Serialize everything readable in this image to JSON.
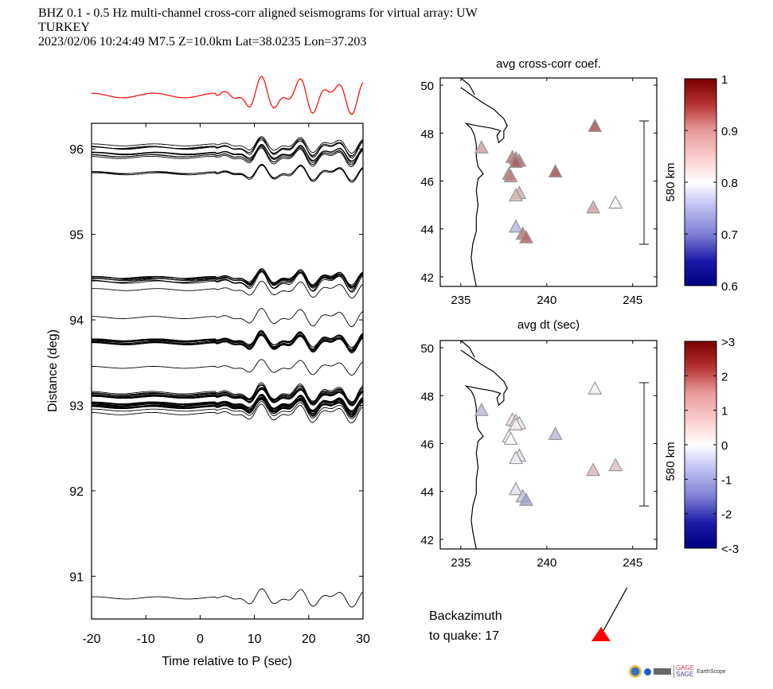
{
  "header": {
    "line1": "BHZ  0.1 - 0.5 Hz  multi-channel cross-corr aligned seismograms for virtual array: UW",
    "line2": "TURKEY",
    "line3": "2023/02/06  10:24:49  M7.5  Z=10.0km Lat=38.0235 Lon=37.203"
  },
  "chart_data": [
    {
      "type": "line",
      "name": "record-section",
      "title": "",
      "xlabel": "Time relative to P (sec)",
      "ylabel": "Distance (deg)",
      "xlim": [
        -20,
        30
      ],
      "ylim": [
        90.5,
        96.3
      ],
      "xticks": [
        "-20",
        "-10",
        "0",
        "10",
        "20",
        "30"
      ],
      "xtick_values": [
        -20,
        -10,
        0,
        10,
        20,
        30
      ],
      "yticks": [
        "91",
        "92",
        "93",
        "94",
        "95",
        "96"
      ],
      "ytick_values": [
        91,
        92,
        93,
        94,
        95,
        96
      ],
      "stack_trace_color": "#ff0000",
      "trace_color": "#000000",
      "trace_groups": [
        {
          "distance": 96.02,
          "count": 4
        },
        {
          "distance": 95.93,
          "count": 6
        },
        {
          "distance": 95.72,
          "count": 3
        },
        {
          "distance": 94.47,
          "count": 10
        },
        {
          "distance": 94.36,
          "count": 1
        },
        {
          "distance": 94.0,
          "count": 1
        },
        {
          "distance": 93.74,
          "count": 12
        },
        {
          "distance": 93.43,
          "count": 1
        },
        {
          "distance": 93.12,
          "count": 10
        },
        {
          "distance": 93.0,
          "count": 16
        },
        {
          "distance": 92.93,
          "count": 2
        },
        {
          "distance": 90.74,
          "count": 1
        }
      ]
    },
    {
      "type": "scatter",
      "name": "map-avg-cross-corr",
      "title": "avg cross-corr coef.",
      "xlabel": "avg dt (sec)",
      "xlim": [
        233.8,
        246.4
      ],
      "ylim": [
        41.6,
        50.3
      ],
      "xticks": [
        "235",
        "240",
        "245"
      ],
      "xtick_values": [
        235,
        240,
        245
      ],
      "yticks": [
        "42",
        "44",
        "46",
        "48",
        "50"
      ],
      "ytick_values": [
        42,
        44,
        46,
        48,
        50
      ],
      "scale_bar_label": "580 km",
      "colorbar": {
        "min": 0.6,
        "max": 1.0,
        "ticks": [
          "0.6",
          "0.7",
          "0.8",
          "0.9",
          "1"
        ],
        "tick_values": [
          0.6,
          0.7,
          0.8,
          0.9,
          1.0
        ]
      },
      "stations": [
        {
          "lon": 236.2,
          "lat": 47.4,
          "value": 0.88
        },
        {
          "lon": 238.0,
          "lat": 47.0,
          "value": 0.92
        },
        {
          "lon": 238.2,
          "lat": 46.95,
          "value": 0.93
        },
        {
          "lon": 238.4,
          "lat": 46.85,
          "value": 0.92
        },
        {
          "lon": 238.2,
          "lat": 46.8,
          "value": 0.94
        },
        {
          "lon": 237.8,
          "lat": 46.3,
          "value": 0.92
        },
        {
          "lon": 237.9,
          "lat": 46.2,
          "value": 0.91
        },
        {
          "lon": 240.5,
          "lat": 46.4,
          "value": 0.95
        },
        {
          "lon": 238.4,
          "lat": 45.5,
          "value": 0.87
        },
        {
          "lon": 238.2,
          "lat": 45.4,
          "value": 0.86
        },
        {
          "lon": 238.2,
          "lat": 44.1,
          "value": 0.74
        },
        {
          "lon": 238.6,
          "lat": 43.8,
          "value": 0.92
        },
        {
          "lon": 238.8,
          "lat": 43.65,
          "value": 0.93
        },
        {
          "lon": 242.8,
          "lat": 48.3,
          "value": 0.95
        },
        {
          "lon": 242.7,
          "lat": 44.9,
          "value": 0.88
        },
        {
          "lon": 244.0,
          "lat": 45.1,
          "value": 0.79
        }
      ]
    },
    {
      "type": "scatter",
      "name": "map-avg-dt",
      "title": "avg dt (sec)",
      "xlabel": "",
      "xlim": [
        233.8,
        246.4
      ],
      "ylim": [
        41.6,
        50.3
      ],
      "xticks": [
        "235",
        "240",
        "245"
      ],
      "xtick_values": [
        235,
        240,
        245
      ],
      "yticks": [
        "42",
        "44",
        "46",
        "48",
        "50"
      ],
      "ytick_values": [
        42,
        44,
        46,
        48,
        50
      ],
      "scale_bar_label": "580 km",
      "colorbar": {
        "min": -3,
        "max": 3,
        "ticks": [
          "<-3",
          "-2",
          "-1",
          "0",
          "1",
          "2",
          ">3"
        ],
        "tick_values": [
          -3,
          -2,
          -1,
          0,
          1,
          2,
          3
        ]
      },
      "stations": [
        {
          "lon": 236.2,
          "lat": 47.4,
          "value": -0.9
        },
        {
          "lon": 238.0,
          "lat": 47.0,
          "value": 0.4
        },
        {
          "lon": 238.2,
          "lat": 46.95,
          "value": 0.3
        },
        {
          "lon": 238.4,
          "lat": 46.85,
          "value": -0.2
        },
        {
          "lon": 238.2,
          "lat": 46.8,
          "value": 0.2
        },
        {
          "lon": 237.8,
          "lat": 46.3,
          "value": -0.1
        },
        {
          "lon": 237.9,
          "lat": 46.2,
          "value": 0.0
        },
        {
          "lon": 240.5,
          "lat": 46.4,
          "value": -0.9
        },
        {
          "lon": 238.4,
          "lat": 45.5,
          "value": -0.4
        },
        {
          "lon": 238.2,
          "lat": 45.4,
          "value": -0.2
        },
        {
          "lon": 238.2,
          "lat": 44.1,
          "value": -0.4
        },
        {
          "lon": 238.6,
          "lat": 43.8,
          "value": -0.8
        },
        {
          "lon": 238.8,
          "lat": 43.65,
          "value": -1.2
        },
        {
          "lon": 242.8,
          "lat": 48.3,
          "value": -0.2
        },
        {
          "lon": 242.7,
          "lat": 44.9,
          "value": 0.9
        },
        {
          "lon": 244.0,
          "lat": 45.1,
          "value": 0.8
        }
      ]
    }
  ],
  "backazimuth": {
    "label_line1": "Backazimuth",
    "label_line2": "to quake:  17",
    "value_deg": 17,
    "marker_color": "#ff0000"
  },
  "logos": {
    "gage": "GAGE",
    "sage": "SAGE",
    "earthscope": "EarthScope"
  }
}
